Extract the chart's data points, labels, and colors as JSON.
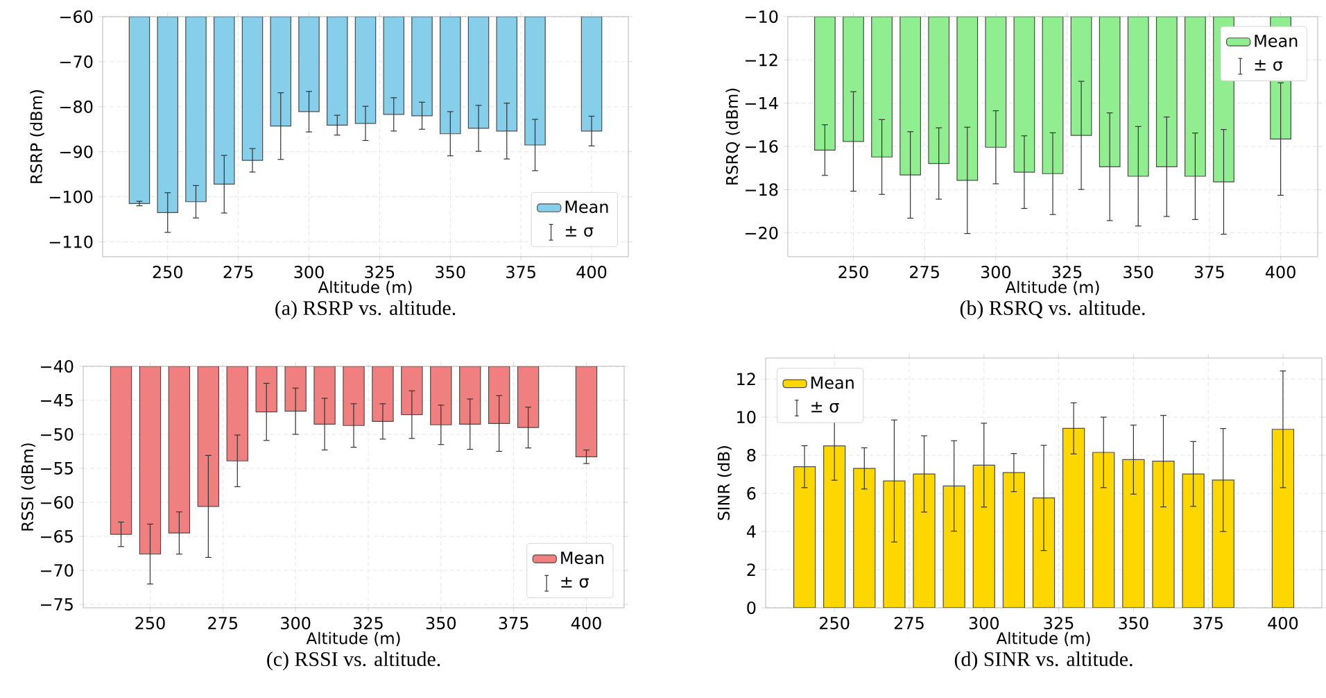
{
  "chart_data": [
    {
      "type": "bar",
      "title": "(a) RSRP vs. altitude.",
      "xlabel": "Altitude (m)",
      "ylabel": "RSRP (dBm)",
      "x": [
        240,
        250,
        260,
        270,
        280,
        290,
        300,
        310,
        320,
        330,
        340,
        350,
        360,
        370,
        380,
        400
      ],
      "series": [
        {
          "name": "Mean",
          "color": "#87ceeb",
          "values": [
            -101.5,
            -103.5,
            -101.1,
            -97.2,
            -91.9,
            -84.3,
            -81.1,
            -84.1,
            -83.7,
            -81.7,
            -82.0,
            -86.0,
            -84.8,
            -85.4,
            -88.5,
            -85.4
          ],
          "errors": [
            0.5,
            4.4,
            3.6,
            6.4,
            2.6,
            7.4,
            4.5,
            2.2,
            3.8,
            3.7,
            3.0,
            4.9,
            5.1,
            6.2,
            5.7,
            3.3
          ]
        }
      ],
      "annotations": [
        "± σ"
      ],
      "xlim": [
        227,
        413
      ],
      "ylim": [
        -113.3,
        -60
      ],
      "xticks": [
        250,
        275,
        300,
        325,
        350,
        375,
        400
      ],
      "yticks": [
        {
          "value": -110,
          "label": "−110"
        },
        {
          "value": -100,
          "label": "−100"
        },
        {
          "value": -90,
          "label": "−90"
        },
        {
          "value": -80,
          "label": "−80"
        },
        {
          "value": -70,
          "label": "−70"
        },
        {
          "value": -60,
          "label": "−60"
        }
      ],
      "grid": true,
      "legend": "bottom right"
    },
    {
      "type": "bar",
      "title": "(b) RSRQ vs. altitude.",
      "xlabel": "Altitude (m)",
      "ylabel": "RSRQ (dBm)",
      "x": [
        240,
        250,
        260,
        270,
        280,
        290,
        300,
        310,
        320,
        330,
        340,
        350,
        360,
        370,
        380,
        400
      ],
      "series": [
        {
          "name": "Mean",
          "color": "#90ee90",
          "values": [
            -16.17,
            -15.77,
            -16.49,
            -17.32,
            -16.79,
            -17.57,
            -16.04,
            -17.19,
            -17.26,
            -15.49,
            -16.94,
            -17.38,
            -16.94,
            -17.38,
            -17.64,
            -15.66
          ],
          "errors": [
            1.17,
            2.3,
            1.73,
            2.0,
            1.65,
            2.46,
            1.69,
            1.68,
            1.89,
            2.5,
            2.49,
            2.3,
            2.3,
            2.0,
            2.42,
            2.6
          ]
        }
      ],
      "annotations": [
        "± σ"
      ],
      "xlim": [
        227,
        413
      ],
      "ylim": [
        -21.1,
        -10
      ],
      "xticks": [
        250,
        275,
        300,
        325,
        350,
        375,
        400
      ],
      "yticks": [
        {
          "value": -20,
          "label": "−20"
        },
        {
          "value": -18,
          "label": "−18"
        },
        {
          "value": -16,
          "label": "−16"
        },
        {
          "value": -14,
          "label": "−14"
        },
        {
          "value": -12,
          "label": "−12"
        },
        {
          "value": -10,
          "label": "−10"
        }
      ],
      "grid": true,
      "legend": "top right"
    },
    {
      "type": "bar",
      "title": "(c) RSSI vs. altitude.",
      "xlabel": "Altitude (m)",
      "ylabel": "RSSI (dBm)",
      "x": [
        240,
        250,
        260,
        270,
        280,
        290,
        300,
        310,
        320,
        330,
        340,
        350,
        360,
        370,
        380,
        400
      ],
      "series": [
        {
          "name": "Mean",
          "color": "#f08080",
          "values": [
            -64.7,
            -67.6,
            -64.5,
            -60.6,
            -53.9,
            -46.7,
            -46.6,
            -48.5,
            -48.7,
            -48.1,
            -47.1,
            -48.6,
            -48.5,
            -48.4,
            -49.0,
            -53.3
          ],
          "errors": [
            1.8,
            4.4,
            3.1,
            7.5,
            3.8,
            4.2,
            3.4,
            3.8,
            3.2,
            2.6,
            3.5,
            2.9,
            3.7,
            4.1,
            3.0,
            1.0
          ]
        }
      ],
      "annotations": [
        "± σ"
      ],
      "xlim": [
        227,
        413
      ],
      "ylim": [
        -75.5,
        -40
      ],
      "xticks": [
        250,
        275,
        300,
        325,
        350,
        375,
        400
      ],
      "yticks": [
        {
          "value": -75,
          "label": "−75"
        },
        {
          "value": -70,
          "label": "−70"
        },
        {
          "value": -65,
          "label": "−65"
        },
        {
          "value": -60,
          "label": "−60"
        },
        {
          "value": -55,
          "label": "−55"
        },
        {
          "value": -50,
          "label": "−50"
        },
        {
          "value": -45,
          "label": "−45"
        },
        {
          "value": -40,
          "label": "−40"
        }
      ],
      "grid": true,
      "legend": "bottom right"
    },
    {
      "type": "bar",
      "title": "(d) SINR vs. altitude.",
      "xlabel": "Altitude (m)",
      "ylabel": "SINR (dB)",
      "x": [
        240,
        250,
        260,
        270,
        280,
        290,
        300,
        310,
        320,
        330,
        340,
        350,
        360,
        370,
        380,
        400
      ],
      "series": [
        {
          "name": "Mean",
          "color": "#ffd700",
          "values": [
            7.4,
            8.49,
            7.31,
            6.65,
            7.02,
            6.39,
            7.48,
            7.09,
            5.76,
            9.41,
            8.15,
            7.77,
            7.69,
            7.02,
            6.7,
            9.36
          ],
          "errors": [
            1.1,
            1.8,
            1.08,
            3.2,
            2.0,
            2.37,
            2.2,
            1.0,
            2.76,
            1.34,
            1.85,
            1.81,
            2.4,
            1.7,
            2.7,
            3.06
          ]
        }
      ],
      "annotations": [
        "± σ"
      ],
      "xlim": [
        227,
        413
      ],
      "ylim": [
        0,
        13.1
      ],
      "xticks": [
        250,
        275,
        300,
        325,
        350,
        375,
        400
      ],
      "yticks": [
        0,
        2,
        4,
        6,
        8,
        10,
        12
      ],
      "grid": true,
      "legend": "top left"
    }
  ]
}
